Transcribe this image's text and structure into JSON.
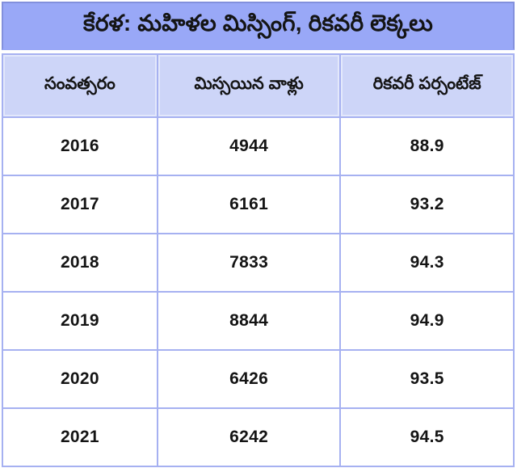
{
  "title": "కేరళ: మహిళల మిస్సింగ్, రికవరీ లెక్కలు",
  "colors": {
    "page_bg": "#ffffff",
    "title_bg": "#99a8f7",
    "title_border": "#8290dd",
    "header_bg": "#cdd5f8",
    "table_border": "#a6b1f1",
    "row_bg": "#ffffff",
    "text": "#141414"
  },
  "table": {
    "columns": [
      "సంవత్సరం",
      "మిస్సయిన వాళ్లు",
      "రికవరీ పర్సంటేజ్"
    ],
    "rows": [
      {
        "year": "2016",
        "missing": "4944",
        "recovery": "88.9"
      },
      {
        "year": "2017",
        "missing": "6161",
        "recovery": "93.2"
      },
      {
        "year": "2018",
        "missing": "7833",
        "recovery": "94.3"
      },
      {
        "year": "2019",
        "missing": "8844",
        "recovery": "94.9"
      },
      {
        "year": "2020",
        "missing": "6426",
        "recovery": "93.5"
      },
      {
        "year": "2021",
        "missing": "6242",
        "recovery": "94.5"
      }
    ]
  },
  "chart_data": {
    "type": "table",
    "title": "కేరళ: మహిళల మిస్సింగ్, రికవరీ లెక్కలు",
    "title_translation": "Kerala: women missing and recovery figures",
    "columns": [
      "సంవత్సరం (Year)",
      "మిస్సయిన వాళ్లు (Missing persons)",
      "రికవరీ పర్సంటేజ్ (Recovery percentage)"
    ],
    "x": [
      2016,
      2017,
      2018,
      2019,
      2020,
      2021
    ],
    "series": [
      {
        "name": "మిస్సయిన వాళ్లు",
        "values": [
          4944,
          6161,
          7833,
          8844,
          6426,
          6242
        ]
      },
      {
        "name": "రికవరీ పర్సంటేజ్",
        "values": [
          88.9,
          93.2,
          94.3,
          94.9,
          93.5,
          94.5
        ]
      }
    ]
  }
}
